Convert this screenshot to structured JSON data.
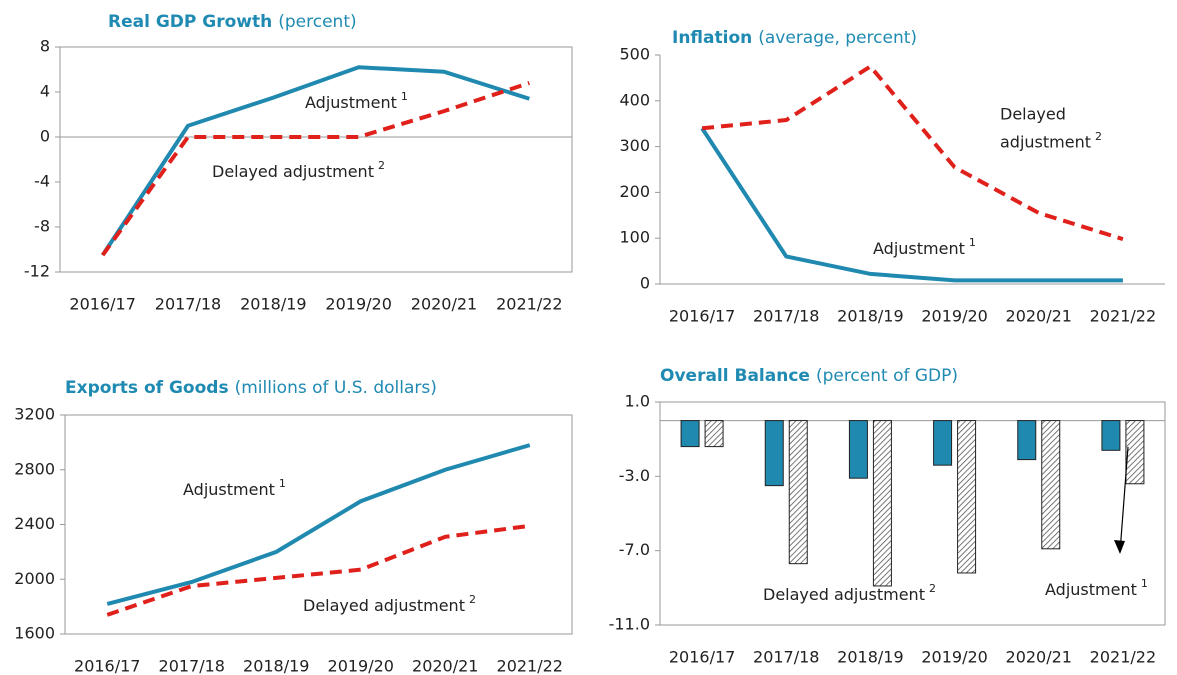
{
  "chart_data": [
    {
      "type": "line",
      "title": "Real GDP Growth",
      "subtitle": "(percent)",
      "categories": [
        "2016/17",
        "2017/18",
        "2018/19",
        "2019/20",
        "2020/21",
        "2021/22"
      ],
      "ylim": [
        -12,
        8
      ],
      "yticks": [
        -12,
        -8,
        -4,
        0,
        4,
        8
      ],
      "series": [
        {
          "name": "Adjustment",
          "note": "1",
          "color": "#2089b0",
          "values": [
            -10.5,
            1.0,
            3.5,
            6.2,
            5.8,
            3.4
          ]
        },
        {
          "name": "Delayed adjustment",
          "note": "2",
          "color": "#e0201b",
          "values": [
            -10.5,
            0,
            0,
            0,
            2.3,
            4.8
          ]
        }
      ]
    },
    {
      "type": "line",
      "title": "Inflation",
      "subtitle": "(average, percent)",
      "categories": [
        "2016/17",
        "2017/18",
        "2018/19",
        "2019/20",
        "2020/21",
        "2021/22"
      ],
      "ylim": [
        0,
        500
      ],
      "yticks": [
        0,
        100,
        200,
        300,
        400,
        500
      ],
      "series": [
        {
          "name": "Adjustment",
          "note": "1",
          "color": "#2089b0",
          "values": [
            340,
            60,
            22,
            8,
            8,
            8
          ]
        },
        {
          "name": "Delayed adjustment",
          "note": "2",
          "color": "#e0201b",
          "values": [
            340,
            358,
            475,
            255,
            155,
            98
          ]
        }
      ]
    },
    {
      "type": "line",
      "title": "Exports of Goods",
      "subtitle": "(millions of U.S. dollars)",
      "categories": [
        "2016/17",
        "2017/18",
        "2018/19",
        "2019/20",
        "2020/21",
        "2021/22"
      ],
      "ylim": [
        1600,
        3200
      ],
      "yticks": [
        1600,
        2000,
        2400,
        2800,
        3200
      ],
      "series": [
        {
          "name": "Adjustment",
          "note": "1",
          "color": "#2089b0",
          "values": [
            1820,
            1980,
            2200,
            2570,
            2800,
            2980
          ]
        },
        {
          "name": "Delayed adjustment",
          "note": "2",
          "color": "#e0201b",
          "values": [
            1740,
            1950,
            2010,
            2070,
            2310,
            2390
          ]
        }
      ]
    },
    {
      "type": "bar",
      "title": "Overall Balance",
      "subtitle": "(percent of GDP)",
      "categories": [
        "2016/17",
        "2017/18",
        "2018/19",
        "2019/20",
        "2020/21",
        "2021/22"
      ],
      "ylim": [
        -11,
        1
      ],
      "yticks": [
        {
          "value": -11,
          "label": "-11.0"
        },
        {
          "value": -7,
          "label": "-7.0"
        },
        {
          "value": -3,
          "label": "-3.0"
        },
        {
          "value": 1,
          "label": "1.0"
        }
      ],
      "series": [
        {
          "name": "Adjustment",
          "note": "1",
          "color": "#2089b0",
          "values": [
            -1.4,
            -3.5,
            -3.1,
            -2.4,
            -2.1,
            -1.6
          ]
        },
        {
          "name": "Delayed adjustment",
          "note": "2",
          "color": "hatch",
          "values": [
            -1.4,
            -7.7,
            -8.9,
            -8.2,
            -6.9,
            -3.4
          ]
        }
      ]
    }
  ]
}
